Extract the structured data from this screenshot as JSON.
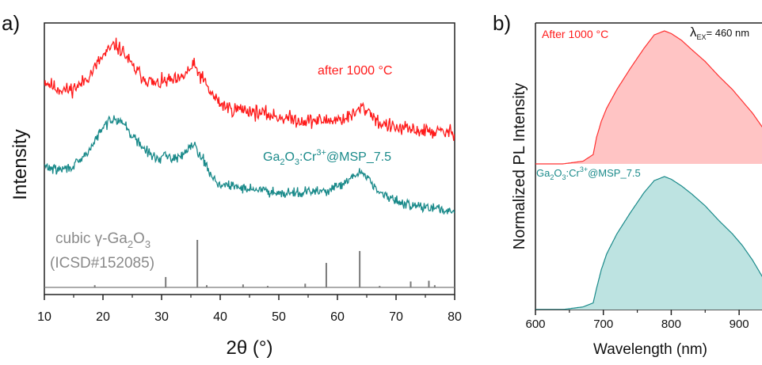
{
  "chart_data": [
    {
      "panel": "a)",
      "type": "line",
      "xlabel": "2θ (°)",
      "ylabel": "Intensity",
      "xlim": [
        10,
        80
      ],
      "xticks": [
        10,
        20,
        30,
        40,
        50,
        60,
        70,
        80
      ],
      "y_ticks_shown": false,
      "grid": false,
      "legend": "inline text labels beside curves",
      "series": [
        {
          "name": "after 1000 °C",
          "color": "#ff1a1a",
          "noise": 0.035,
          "x": [
            10,
            12,
            14,
            16,
            18,
            19.5,
            21,
            22,
            23.5,
            25,
            27,
            29,
            31,
            33,
            34.5,
            35.5,
            37,
            38.5,
            40,
            42,
            44,
            46,
            50,
            54,
            58,
            61,
            63,
            64,
            65.5,
            67,
            70,
            75,
            80
          ],
          "y": [
            0.9,
            0.82,
            0.8,
            0.85,
            0.98,
            1.12,
            1.22,
            1.28,
            1.2,
            1.05,
            0.93,
            0.86,
            0.9,
            0.9,
            1.0,
            1.06,
            0.92,
            0.76,
            0.66,
            0.6,
            0.6,
            0.57,
            0.52,
            0.48,
            0.48,
            0.5,
            0.55,
            0.62,
            0.58,
            0.46,
            0.4,
            0.37,
            0.35
          ]
        },
        {
          "name": "Ga2O3:Cr3+@MSP_7.5",
          "color": "#1a8a8a",
          "noise": 0.03,
          "x": [
            10,
            12,
            14,
            16,
            18,
            19.5,
            21,
            22,
            23.5,
            25,
            27,
            29,
            31,
            33,
            34.5,
            35.5,
            37,
            38.5,
            40,
            42,
            44,
            46,
            50,
            54,
            58,
            61,
            63,
            64,
            65.5,
            67,
            70,
            75,
            80
          ],
          "y": [
            0.95,
            0.9,
            0.92,
            1.0,
            1.2,
            1.4,
            1.55,
            1.6,
            1.52,
            1.35,
            1.18,
            1.05,
            1.08,
            1.05,
            1.2,
            1.25,
            1.05,
            0.82,
            0.7,
            0.68,
            0.66,
            0.64,
            0.6,
            0.6,
            0.62,
            0.7,
            0.82,
            0.88,
            0.78,
            0.6,
            0.48,
            0.4,
            0.35
          ]
        },
        {
          "name": "cubic γ-Ga2O3 (ICSD#152085)",
          "color": "#7a7a7a",
          "type": "stick",
          "x": [
            18.6,
            30.7,
            36.1,
            37.7,
            43.9,
            48.1,
            54.5,
            58.1,
            63.8,
            67.2,
            72.5,
            75.6,
            76.6
          ],
          "y": [
            3,
            14,
            64,
            3,
            4,
            2,
            5,
            33,
            49,
            2,
            8,
            9,
            3
          ]
        }
      ]
    },
    {
      "panel": "b)",
      "type": "area",
      "xlabel": "Wavelength (nm)",
      "ylabel": "Normalized PL Intensity",
      "xlim": [
        600,
        950
      ],
      "xticks": [
        600,
        700,
        800,
        900
      ],
      "y_ticks_shown": false,
      "grid": false,
      "annotation": "λEX = 460 nm",
      "series": [
        {
          "name": "After 1000 °C",
          "color": "#ff3030",
          "fill": "#ffc4c4",
          "x": [
            600,
            640,
            670,
            685,
            690,
            697,
            705,
            720,
            740,
            760,
            775,
            790,
            800,
            815,
            830,
            850,
            870,
            890,
            905,
            920,
            935,
            950
          ],
          "y": [
            0.0,
            0.0,
            0.02,
            0.07,
            0.2,
            0.32,
            0.42,
            0.56,
            0.72,
            0.87,
            0.97,
            1.0,
            0.98,
            0.93,
            0.86,
            0.77,
            0.66,
            0.56,
            0.47,
            0.38,
            0.27,
            0.17
          ]
        },
        {
          "name": "Ga2O3:Cr3+@MSP_7.5",
          "color": "#1a8a8a",
          "fill": "#bde3e1",
          "x": [
            600,
            640,
            670,
            685,
            690,
            697,
            705,
            720,
            740,
            760,
            775,
            790,
            800,
            815,
            830,
            850,
            870,
            890,
            905,
            920,
            935,
            950
          ],
          "y": [
            0.0,
            0.0,
            0.02,
            0.05,
            0.16,
            0.3,
            0.42,
            0.57,
            0.73,
            0.88,
            0.97,
            1.0,
            0.98,
            0.93,
            0.87,
            0.78,
            0.67,
            0.57,
            0.48,
            0.37,
            0.24,
            0.12
          ]
        }
      ]
    }
  ],
  "labels": {
    "panel_a": "a)",
    "panel_b": "b)",
    "a_xlabel": "2θ (°)",
    "a_ylabel": "Intensity",
    "b_xlabel": "Wavelength (nm)",
    "b_ylabel": "Normalized PL Intensity",
    "after_a": "after 1000 °C",
    "msp_a": {
      "base": "Ga",
      "sub1": "2",
      "mid": "O",
      "sub2": "3",
      "mid2": ":Cr",
      "sup": "3+",
      "tail": "@MSP_7.5"
    },
    "ref_line1": {
      "pre": "cubic γ-Ga",
      "sub1": "2",
      "mid": "O",
      "sub2": "3"
    },
    "ref_line2": "(ICSD#152085)",
    "after_b": "After 1000 °C",
    "lambda": {
      "sym": "λ",
      "sub": "EX",
      "tail": "= 460 nm"
    },
    "msp_b": {
      "base": "Ga",
      "sub1": "2",
      "mid": "O",
      "sub2": "3",
      "mid2": ":Cr",
      "sup": "3+",
      "tail": "@MSP_7.5"
    }
  }
}
